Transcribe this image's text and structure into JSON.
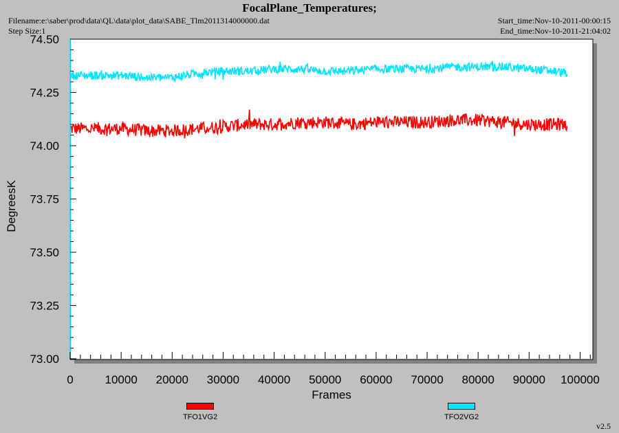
{
  "header": {
    "title": "FocalPlane_Temperatures;",
    "filename": "Filename:e:\\saber\\prod\\data\\QL\\data\\plot_data\\SABE_Tlm2011314000000.dat",
    "step_size": "Step Size:1",
    "start_time": "Start_time:Nov-10-2011-00:00:15",
    "end_time": "End_time:Nov-10-2011-21:04:02",
    "version": "v2.5"
  },
  "colors": {
    "TFO1VG2": "#ff0000",
    "TFO2VG2": "#00e5ff",
    "plot_bg": "#ffffff",
    "page_bg": "#c0c0c0",
    "shadow": "#808080"
  },
  "chart_data": {
    "type": "line",
    "xlabel": "Frames",
    "ylabel": "DegreesK",
    "xlim": [
      0,
      102500
    ],
    "ylim": [
      73.0,
      74.5
    ],
    "x_ticks": [
      0,
      10000,
      20000,
      30000,
      40000,
      50000,
      60000,
      70000,
      80000,
      90000,
      100000
    ],
    "x_tick_labels": [
      "0",
      "10000",
      "20000",
      "30000",
      "40000",
      "50000",
      "60000",
      "70000",
      "80000",
      "90000",
      "100000"
    ],
    "y_ticks": [
      73.0,
      73.25,
      73.5,
      73.75,
      74.0,
      74.25,
      74.5
    ],
    "y_tick_labels": [
      "73.00",
      "73.25",
      "73.50",
      "73.75",
      "74.00",
      "74.25",
      "74.50"
    ],
    "grid": false,
    "legend_position": "bottom",
    "series": [
      {
        "name": "TFO1VG2",
        "x": [
          0,
          5000,
          10000,
          15000,
          20000,
          25000,
          30000,
          35000,
          40000,
          45000,
          50000,
          55000,
          60000,
          65000,
          70000,
          75000,
          80000,
          85000,
          90000,
          95000,
          97500
        ],
        "y": [
          74.08,
          74.08,
          74.08,
          74.07,
          74.07,
          74.08,
          74.09,
          74.1,
          74.1,
          74.11,
          74.11,
          74.1,
          74.11,
          74.11,
          74.11,
          74.12,
          74.12,
          74.11,
          74.1,
          74.1,
          74.1
        ],
        "spread": 0.03
      },
      {
        "name": "TFO2VG2",
        "x": [
          0,
          5000,
          10000,
          15000,
          20000,
          25000,
          30000,
          35000,
          40000,
          45000,
          50000,
          55000,
          60000,
          65000,
          70000,
          75000,
          80000,
          85000,
          90000,
          95000,
          97500
        ],
        "y": [
          74.33,
          74.33,
          74.33,
          74.32,
          74.32,
          74.34,
          74.35,
          74.35,
          74.36,
          74.36,
          74.35,
          74.35,
          74.36,
          74.36,
          74.36,
          74.37,
          74.37,
          74.37,
          74.36,
          74.35,
          74.34
        ],
        "spread": 0.02
      }
    ]
  }
}
